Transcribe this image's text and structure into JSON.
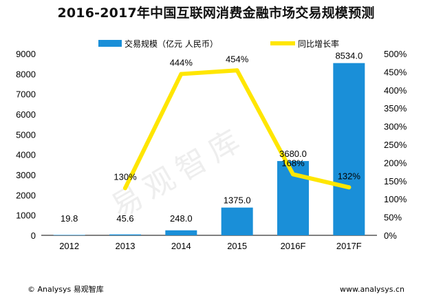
{
  "chart_data": {
    "type": "bar",
    "title": "2016-2017年中国互联网消费金融市场交易规模预测",
    "categories": [
      "2012",
      "2013",
      "2014",
      "2015",
      "2016F",
      "2017F"
    ],
    "series": [
      {
        "name": "交易规模（亿元 人民币）",
        "type": "bar",
        "axis": "left",
        "color": "#1a8fd8",
        "values": [
          19.8,
          45.6,
          248.0,
          1375.0,
          3680.0,
          8534.0
        ],
        "labels": [
          "19.8",
          "45.6",
          "248.0",
          "1375.0",
          "3680.0",
          "8534.0"
        ]
      },
      {
        "name": "同比增长率",
        "type": "line",
        "axis": "right",
        "color": "#ffe600",
        "values": [
          null,
          130,
          444,
          454,
          168,
          132
        ],
        "labels": [
          "",
          "130%",
          "444%",
          "454%",
          "168%",
          "132%"
        ]
      }
    ],
    "yleft": {
      "ylim": [
        0,
        9000
      ],
      "ticks": [
        "0",
        "1000",
        "2000",
        "3000",
        "4000",
        "5000",
        "6000",
        "7000",
        "8000",
        "9000"
      ]
    },
    "yright": {
      "ylim": [
        0,
        500
      ],
      "ticks": [
        "0%",
        "50%",
        "100%",
        "150%",
        "200%",
        "250%",
        "300%",
        "350%",
        "400%",
        "450%",
        "500%"
      ]
    },
    "grid": false,
    "legend": "top-center"
  },
  "watermark": "易观智库",
  "footer": {
    "left": "© Analysys 易观智库",
    "right": "www.analysys.cn"
  }
}
